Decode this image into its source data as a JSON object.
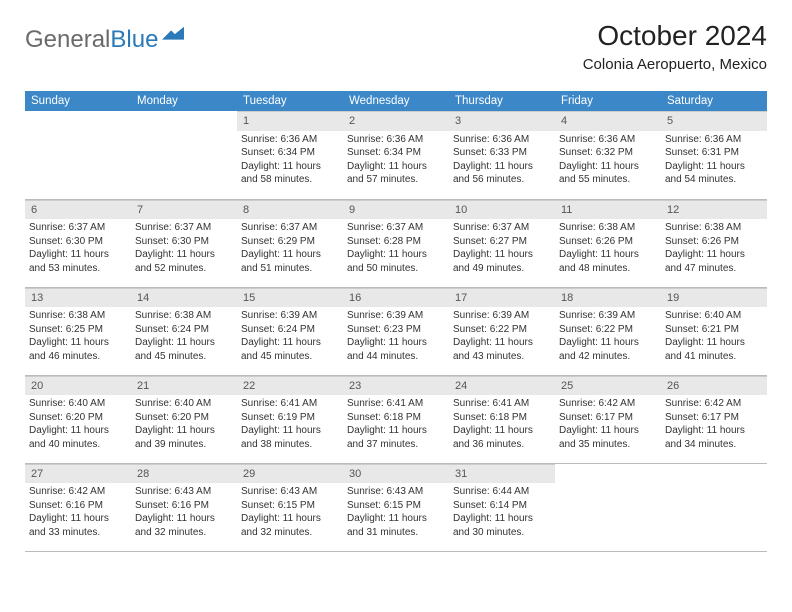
{
  "logo": {
    "textGray": "General",
    "textBlue": "Blue"
  },
  "title": "October 2024",
  "subtitle": "Colonia Aeropuerto, Mexico",
  "colors": {
    "header_bg": "#3b87c8",
    "header_text": "#ffffff",
    "daynum_bg": "#e8e8e8",
    "border": "#bbbbbb",
    "body_text": "#333333",
    "logo_gray": "#6a6a6a",
    "logo_blue": "#2a7ab9"
  },
  "weekdays": [
    "Sunday",
    "Monday",
    "Tuesday",
    "Wednesday",
    "Thursday",
    "Friday",
    "Saturday"
  ],
  "weeks": [
    [
      null,
      null,
      {
        "n": "1",
        "sr": "6:36 AM",
        "ss": "6:34 PM",
        "dl": "11 hours and 58 minutes."
      },
      {
        "n": "2",
        "sr": "6:36 AM",
        "ss": "6:34 PM",
        "dl": "11 hours and 57 minutes."
      },
      {
        "n": "3",
        "sr": "6:36 AM",
        "ss": "6:33 PM",
        "dl": "11 hours and 56 minutes."
      },
      {
        "n": "4",
        "sr": "6:36 AM",
        "ss": "6:32 PM",
        "dl": "11 hours and 55 minutes."
      },
      {
        "n": "5",
        "sr": "6:36 AM",
        "ss": "6:31 PM",
        "dl": "11 hours and 54 minutes."
      }
    ],
    [
      {
        "n": "6",
        "sr": "6:37 AM",
        "ss": "6:30 PM",
        "dl": "11 hours and 53 minutes."
      },
      {
        "n": "7",
        "sr": "6:37 AM",
        "ss": "6:30 PM",
        "dl": "11 hours and 52 minutes."
      },
      {
        "n": "8",
        "sr": "6:37 AM",
        "ss": "6:29 PM",
        "dl": "11 hours and 51 minutes."
      },
      {
        "n": "9",
        "sr": "6:37 AM",
        "ss": "6:28 PM",
        "dl": "11 hours and 50 minutes."
      },
      {
        "n": "10",
        "sr": "6:37 AM",
        "ss": "6:27 PM",
        "dl": "11 hours and 49 minutes."
      },
      {
        "n": "11",
        "sr": "6:38 AM",
        "ss": "6:26 PM",
        "dl": "11 hours and 48 minutes."
      },
      {
        "n": "12",
        "sr": "6:38 AM",
        "ss": "6:26 PM",
        "dl": "11 hours and 47 minutes."
      }
    ],
    [
      {
        "n": "13",
        "sr": "6:38 AM",
        "ss": "6:25 PM",
        "dl": "11 hours and 46 minutes."
      },
      {
        "n": "14",
        "sr": "6:38 AM",
        "ss": "6:24 PM",
        "dl": "11 hours and 45 minutes."
      },
      {
        "n": "15",
        "sr": "6:39 AM",
        "ss": "6:24 PM",
        "dl": "11 hours and 45 minutes."
      },
      {
        "n": "16",
        "sr": "6:39 AM",
        "ss": "6:23 PM",
        "dl": "11 hours and 44 minutes."
      },
      {
        "n": "17",
        "sr": "6:39 AM",
        "ss": "6:22 PM",
        "dl": "11 hours and 43 minutes."
      },
      {
        "n": "18",
        "sr": "6:39 AM",
        "ss": "6:22 PM",
        "dl": "11 hours and 42 minutes."
      },
      {
        "n": "19",
        "sr": "6:40 AM",
        "ss": "6:21 PM",
        "dl": "11 hours and 41 minutes."
      }
    ],
    [
      {
        "n": "20",
        "sr": "6:40 AM",
        "ss": "6:20 PM",
        "dl": "11 hours and 40 minutes."
      },
      {
        "n": "21",
        "sr": "6:40 AM",
        "ss": "6:20 PM",
        "dl": "11 hours and 39 minutes."
      },
      {
        "n": "22",
        "sr": "6:41 AM",
        "ss": "6:19 PM",
        "dl": "11 hours and 38 minutes."
      },
      {
        "n": "23",
        "sr": "6:41 AM",
        "ss": "6:18 PM",
        "dl": "11 hours and 37 minutes."
      },
      {
        "n": "24",
        "sr": "6:41 AM",
        "ss": "6:18 PM",
        "dl": "11 hours and 36 minutes."
      },
      {
        "n": "25",
        "sr": "6:42 AM",
        "ss": "6:17 PM",
        "dl": "11 hours and 35 minutes."
      },
      {
        "n": "26",
        "sr": "6:42 AM",
        "ss": "6:17 PM",
        "dl": "11 hours and 34 minutes."
      }
    ],
    [
      {
        "n": "27",
        "sr": "6:42 AM",
        "ss": "6:16 PM",
        "dl": "11 hours and 33 minutes."
      },
      {
        "n": "28",
        "sr": "6:43 AM",
        "ss": "6:16 PM",
        "dl": "11 hours and 32 minutes."
      },
      {
        "n": "29",
        "sr": "6:43 AM",
        "ss": "6:15 PM",
        "dl": "11 hours and 32 minutes."
      },
      {
        "n": "30",
        "sr": "6:43 AM",
        "ss": "6:15 PM",
        "dl": "11 hours and 31 minutes."
      },
      {
        "n": "31",
        "sr": "6:44 AM",
        "ss": "6:14 PM",
        "dl": "11 hours and 30 minutes."
      },
      null,
      null
    ]
  ],
  "labels": {
    "sunrise": "Sunrise:",
    "sunset": "Sunset:",
    "daylight": "Daylight:"
  }
}
